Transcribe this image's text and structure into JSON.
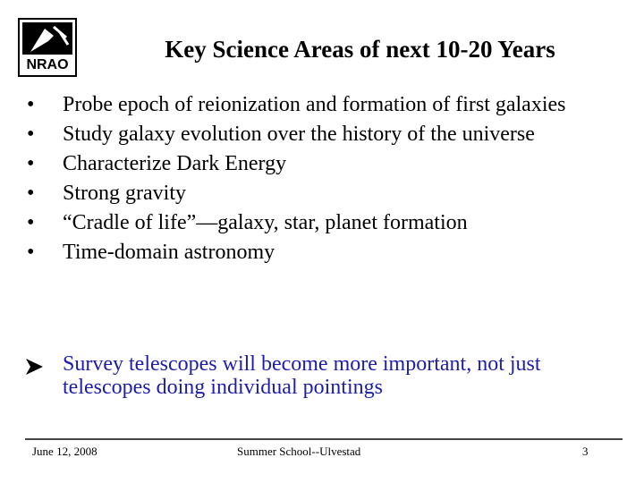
{
  "header": {
    "logo_text": "NRAO",
    "title": "Key Science Areas of next 10-20 Years"
  },
  "bullets": [
    "Probe epoch of reionization and formation of first galaxies",
    "Study galaxy evolution over the history of the universe",
    "Characterize Dark Energy",
    "Strong gravity",
    "“Cradle of life”—galaxy, star, planet formation",
    "Time-domain astronomy"
  ],
  "conclusion": "Survey telescopes will become more important, not just telescopes doing individual pointings",
  "footer": {
    "date": "June 12, 2008",
    "center": "Summer School--Ulvestad",
    "page": "3"
  }
}
